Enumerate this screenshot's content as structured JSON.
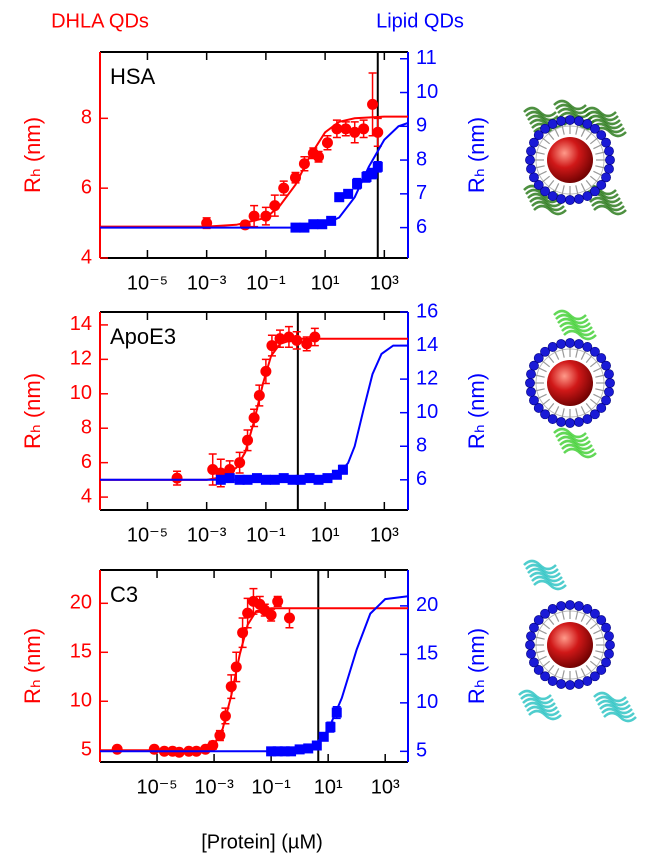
{
  "legend": [
    {
      "name": "DHLA QDs",
      "color": "#ff0000"
    },
    {
      "name": "Lipid QDs",
      "color": "#0000ff"
    }
  ],
  "xlabel": "[Protein] (µM)",
  "chart_data": [
    {
      "type": "scatter",
      "annotation": "HSA",
      "ylabel": "Rₕ (nm)",
      "y2label": "Rₕ (nm)",
      "xscale": "log",
      "ycolor": "#ff0000",
      "y2color": "#0000ff",
      "xlim": [
        2.5e-07,
        6300
      ],
      "xticks": [
        {
          "value": 1e-05,
          "label": "10⁻⁵"
        },
        {
          "value": 0.001,
          "label": "10⁻³"
        },
        {
          "value": 0.1,
          "label": "10⁻¹"
        },
        {
          "value": 10,
          "label": "10¹"
        },
        {
          "value": 1000,
          "label": "10³"
        }
      ],
      "ylim": [
        4,
        9.9
      ],
      "yticks": [
        4,
        6,
        8
      ],
      "y2lim": [
        5.1,
        11.2
      ],
      "y2ticks": [
        6,
        7,
        8,
        9,
        10,
        11
      ],
      "vline": 600,
      "series": [
        {
          "color": "#ff0000",
          "axis": "y",
          "marker": "circle",
          "x": [
            0.001,
            0.02,
            0.04,
            0.1,
            0.2,
            0.4,
            1,
            2,
            4,
            6,
            12,
            25,
            50,
            100,
            200,
            400,
            600
          ],
          "values": [
            5.0,
            4.95,
            5.2,
            5.2,
            5.5,
            6.0,
            6.3,
            6.7,
            7.0,
            6.9,
            7.3,
            7.7,
            7.7,
            7.6,
            7.7,
            8.4,
            7.6
          ],
          "errors": [
            0.15,
            0.1,
            0.3,
            0.25,
            0.3,
            0.2,
            0.15,
            0.2,
            0.15,
            0.15,
            0.2,
            0.25,
            0.2,
            0.3,
            0.25,
            0.9,
            0.4
          ]
        },
        {
          "color": "#ff0000",
          "axis": "y",
          "marker": "line",
          "x": [
            2.5e-07,
            0.001,
            0.01,
            0.1,
            0.3,
            1,
            3,
            10,
            30,
            100,
            1000,
            6300
          ],
          "values": [
            4.9,
            4.9,
            4.95,
            5.15,
            5.5,
            6.1,
            6.9,
            7.6,
            7.9,
            8.0,
            8.05,
            8.05
          ]
        },
        {
          "color": "#0000ff",
          "axis": "y2",
          "marker": "square",
          "x": [
            1,
            2,
            4,
            8,
            16,
            30,
            60,
            120,
            250,
            400,
            600
          ],
          "values": [
            6.0,
            6.0,
            6.1,
            6.1,
            6.2,
            6.9,
            7.0,
            7.3,
            7.5,
            7.6,
            7.8
          ],
          "errors": [
            0.1,
            0.1,
            0.1,
            0.1,
            0.12,
            0.12,
            0.12,
            0.15,
            0.15,
            0.15,
            0.15
          ]
        },
        {
          "color": "#0000ff",
          "axis": "y2",
          "marker": "line",
          "x": [
            2.5e-07,
            1,
            10,
            30,
            100,
            300,
            1000,
            3000,
            6300
          ],
          "values": [
            6.0,
            6.0,
            6.1,
            6.3,
            6.9,
            7.8,
            8.6,
            9.0,
            9.1
          ]
        }
      ]
    },
    {
      "type": "scatter",
      "annotation": "ApoE3",
      "ylabel": "Rₕ (nm)",
      "y2label": "Rₕ (nm)",
      "xscale": "log",
      "ycolor": "#ff0000",
      "y2color": "#0000ff",
      "xlim": [
        2.5e-07,
        6300
      ],
      "xticks": [
        {
          "value": 1e-05,
          "label": "10⁻⁵"
        },
        {
          "value": 0.001,
          "label": "10⁻³"
        },
        {
          "value": 0.1,
          "label": "10⁻¹"
        },
        {
          "value": 10,
          "label": "10¹"
        },
        {
          "value": 1000,
          "label": "10³"
        }
      ],
      "ylim": [
        3.25,
        14.75
      ],
      "yticks": [
        4,
        6,
        8,
        10,
        12,
        14
      ],
      "y2lim": [
        4.2,
        16
      ],
      "y2ticks": [
        6,
        8,
        10,
        12,
        14,
        16
      ],
      "vline": 1.2,
      "series": [
        {
          "color": "#ff0000",
          "axis": "y",
          "marker": "circle",
          "x": [
            0.0001,
            0.0016,
            0.003,
            0.006,
            0.013,
            0.024,
            0.04,
            0.06,
            0.1,
            0.16,
            0.3,
            0.6,
            1.1,
            2.4,
            4.5
          ],
          "values": [
            5.1,
            5.6,
            5.4,
            5.6,
            6.0,
            7.3,
            8.6,
            9.9,
            11.3,
            12.8,
            13.2,
            13.3,
            13.1,
            12.9,
            13.3
          ],
          "errors": [
            0.4,
            0.9,
            0.8,
            0.5,
            0.6,
            0.6,
            0.5,
            0.6,
            0.7,
            0.6,
            0.5,
            0.6,
            0.5,
            0.4,
            0.5
          ]
        },
        {
          "color": "#ff0000",
          "axis": "y",
          "marker": "line",
          "x": [
            2.5e-07,
            0.001,
            0.003,
            0.01,
            0.02,
            0.04,
            0.08,
            0.15,
            0.3,
            1,
            10,
            6300
          ],
          "values": [
            5,
            5.0,
            5.15,
            5.7,
            6.6,
            8.4,
            10.6,
            12.2,
            12.9,
            13.2,
            13.2,
            13.2
          ]
        },
        {
          "color": "#0000ff",
          "axis": "y2",
          "marker": "square",
          "x": [
            0.003,
            0.006,
            0.013,
            0.024,
            0.05,
            0.1,
            0.2,
            0.4,
            0.8,
            1.5,
            3,
            6,
            12,
            25,
            40
          ],
          "values": [
            6.0,
            6.1,
            6.0,
            6.0,
            6.1,
            6.0,
            6.0,
            6.1,
            6.0,
            6.0,
            6.1,
            6.0,
            6.1,
            6.3,
            6.6
          ],
          "errors": [
            0.2,
            0.2,
            0.2,
            0.2,
            0.2,
            0.2,
            0.2,
            0.2,
            0.2,
            0.2,
            0.2,
            0.2,
            0.2,
            0.2,
            0.25
          ]
        },
        {
          "color": "#0000ff",
          "axis": "y2",
          "marker": "line",
          "x": [
            2.5e-07,
            1,
            10,
            30,
            60,
            100,
            200,
            400,
            800,
            2000,
            6300
          ],
          "values": [
            6,
            6,
            6.1,
            6.4,
            7.0,
            8.0,
            10.2,
            12.3,
            13.5,
            14.0,
            14.0
          ]
        }
      ]
    },
    {
      "type": "scatter",
      "annotation": "C3",
      "ylabel": "Rₕ (nm)",
      "y2label": "Rₕ (nm)",
      "xscale": "log",
      "ycolor": "#ff0000",
      "y2color": "#0000ff",
      "xlim": [
        1e-07,
        6300
      ],
      "xticks": [
        {
          "value": 1e-05,
          "label": "10⁻⁵"
        },
        {
          "value": 0.001,
          "label": "10⁻³"
        },
        {
          "value": 0.1,
          "label": "10⁻¹"
        },
        {
          "value": 10,
          "label": "10¹"
        },
        {
          "value": 1000,
          "label": "10³"
        }
      ],
      "ylim": [
        3.8,
        23.4
      ],
      "yticks": [
        5,
        10,
        15,
        20
      ],
      "y2lim": [
        3.9,
        23.7
      ],
      "y2ticks": [
        5,
        10,
        15,
        20
      ],
      "vline": 4.5,
      "series": [
        {
          "color": "#ff0000",
          "axis": "y",
          "marker": "circle",
          "x": [
            4e-07,
            8e-06,
            1.8e-05,
            3.5e-05,
            6e-05,
            0.00013,
            0.00024,
            0.0005,
            0.0009,
            0.0016,
            0.0025,
            0.004,
            0.006,
            0.01,
            0.015,
            0.024,
            0.04,
            0.06,
            0.1,
            0.17,
            0.44
          ],
          "values": [
            5.1,
            5.1,
            4.9,
            4.9,
            4.8,
            4.9,
            4.9,
            5.1,
            5.5,
            6.5,
            8.5,
            11.5,
            13.5,
            17,
            19.0,
            20.2,
            19.9,
            19.3,
            18.8,
            20.2,
            18.5
          ],
          "errors": [
            0.3,
            0.3,
            0.3,
            0.3,
            0.3,
            0.3,
            0.3,
            0.3,
            0.4,
            0.5,
            0.8,
            1.2,
            1.5,
            1.5,
            1.5,
            1.3,
            0.8,
            0.6,
            0.6,
            0.5,
            1.0
          ]
        },
        {
          "color": "#ff0000",
          "axis": "y",
          "marker": "line",
          "x": [
            1e-07,
            0.0001,
            0.0005,
            0.001,
            0.002,
            0.004,
            0.008,
            0.015,
            0.03,
            0.1,
            6300
          ],
          "values": [
            5,
            5,
            5.1,
            5.6,
            7.2,
            10.6,
            14.8,
            17.8,
            19.2,
            19.5,
            19.5
          ]
        },
        {
          "color": "#0000ff",
          "axis": "y2",
          "marker": "square",
          "x": [
            0.1,
            0.17,
            0.3,
            0.5,
            1,
            2,
            4,
            7,
            12,
            20
          ],
          "values": [
            5,
            5,
            5,
            5,
            5.2,
            5.3,
            5.6,
            6.5,
            7.5,
            9.0
          ],
          "errors": [
            0.3,
            0.3,
            0.3,
            0.3,
            0.3,
            0.3,
            0.3,
            0.4,
            0.5,
            0.6
          ]
        },
        {
          "color": "#0000ff",
          "axis": "y2",
          "marker": "line",
          "x": [
            1e-07,
            0.3,
            1,
            3,
            10,
            30,
            100,
            300,
            1000,
            6300
          ],
          "values": [
            5,
            5,
            5.1,
            5.5,
            7.2,
            10.5,
            15.5,
            19.2,
            20.7,
            21.0
          ]
        }
      ]
    }
  ]
}
